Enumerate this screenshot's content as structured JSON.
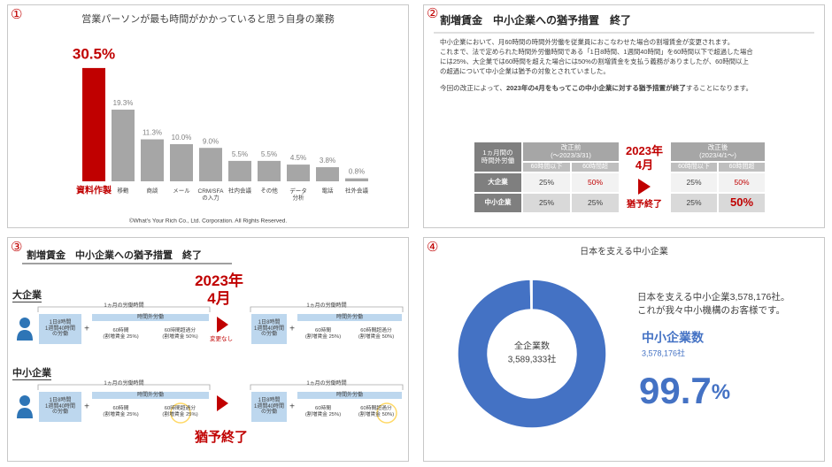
{
  "panel_numbers": [
    "①",
    "②",
    "③",
    "④"
  ],
  "chart_data": [
    {
      "type": "bar",
      "title": "営業パーソンが最も時間がかかっていると思う自身の業務",
      "categories": [
        "資料作製",
        "移動",
        "商談",
        "メール",
        "CRM/SFA\nの入力",
        "社内会議",
        "その他",
        "データ\n分析",
        "電話",
        "社外会議"
      ],
      "values": [
        30.5,
        19.3,
        11.3,
        10.0,
        9.0,
        5.5,
        5.5,
        4.5,
        3.8,
        0.8
      ],
      "value_labels": [
        "30.5%",
        "19.3%",
        "11.3%",
        "10.0%",
        "9.0%",
        "5.5%",
        "5.5%",
        "4.5%",
        "3.8%",
        "0.8%"
      ],
      "colors": [
        "#c00000",
        "#a6a6a6",
        "#a6a6a6",
        "#a6a6a6",
        "#a6a6a6",
        "#a6a6a6",
        "#a6a6a6",
        "#a6a6a6",
        "#a6a6a6",
        "#a6a6a6"
      ],
      "footer": "©What's Your Rich Co., Ltd. Corporation. All Rights Reserved."
    },
    {
      "type": "pie",
      "title": "日本を支える中小企業",
      "categories": [
        "中小企業数",
        null
      ],
      "values": [
        3578176,
        11157
      ],
      "value_labels": [
        "3,578,176社",
        null
      ],
      "colors": [
        "#4472c4",
        "#ffffff"
      ],
      "center_label": "全企業数",
      "center_value": "3,589,333社",
      "note": [
        "日本を支える中小企業3,578,176社。",
        "これが我々中小機構のお客様です。"
      ],
      "share": "99.7",
      "share_unit": "%"
    }
  ],
  "slide2": {
    "title": "割増賃金　中小企業への猶予措置　終了",
    "body": [
      "中小企業において、月60時間の時間外労働を従業員におこなわせた場合の割増賃金が変更されます。",
      "これまで、法で定められた時間外労働時間である「1日8時間、1週間40時間」を60時間以下で超過した場合",
      "には25%、大企業では60時間を超えた場合には50%の割増賃金を支払う義務がありましたが、60時間以上",
      "の超過について中小企業は猶予の対象とされていました。"
    ],
    "notice": [
      "今回の改正によって、",
      "2023年の4月をもってこの中小企業に対する猶予措置が終了",
      "することになります。"
    ],
    "table_before": {
      "corner": "1ヵ月間の\n時間外労働",
      "period": "改正前\n(〜2023/3/31)",
      "cols": [
        "60時間以下",
        "60時間超"
      ],
      "rows": [
        {
          "label": "大企業",
          "cells": [
            "25%",
            "50%"
          ],
          "colors": [
            "#404040",
            "#c00000"
          ]
        },
        {
          "label": "中小企業",
          "cells": [
            "25%",
            "25%"
          ],
          "colors": [
            "#404040",
            "#404040"
          ]
        }
      ]
    },
    "change": {
      "date": "2023年\n4月",
      "result": "猶予終了"
    },
    "table_after": {
      "period": "改正後\n(2023/4/1〜)",
      "cols": [
        "60時間以下",
        "60時間超"
      ],
      "rows": [
        {
          "cells": [
            "25%",
            "50%"
          ],
          "colors": [
            "#404040",
            "#c00000"
          ]
        },
        {
          "cells": [
            "25%",
            "50%"
          ],
          "colors": [
            "#404040",
            "#c00000"
          ]
        }
      ]
    }
  },
  "slide3": {
    "title": "割増賃金　中小企業への猶予措置　終了",
    "date": "2023年\n4月",
    "rows": [
      {
        "label": "大企業",
        "note": "変更なし",
        "before": {
          "period": "1ヵ月の労働時間",
          "base": "1日8時間\n1週間40時間\nの労働",
          "overtime": "時間外労働",
          "upto60": "60時間\n(割増賃金 25%)",
          "over60": "60時間超過分\n(割増賃金 50%)"
        },
        "after": {
          "period": "1ヵ月の労働時間",
          "base": "1日8時間\n1週間40時間\nの労働",
          "overtime": "時間外労働",
          "upto60": "60時間\n(割増賃金 25%)",
          "over60": "60時間超過分\n(割増賃金 50%)"
        }
      },
      {
        "label": "中小企業",
        "note": "猶予終了",
        "before": {
          "period": "1ヵ月の労働時間",
          "base": "1日8時間\n1週間40時間\nの労働",
          "overtime": "時間外労働",
          "upto60": "60時間\n(割増賃金 25%)",
          "over60": "60時間超過分\n(割増賃金 25%)"
        },
        "after": {
          "period": "1ヵ月の労働時間",
          "base": "1日8時間\n1週間40時間\nの労働",
          "overtime": "時間外労働",
          "upto60": "60時間\n(割増賃金 25%)",
          "over60": "60時間超過分\n(割増賃金 50%)"
        }
      }
    ]
  }
}
